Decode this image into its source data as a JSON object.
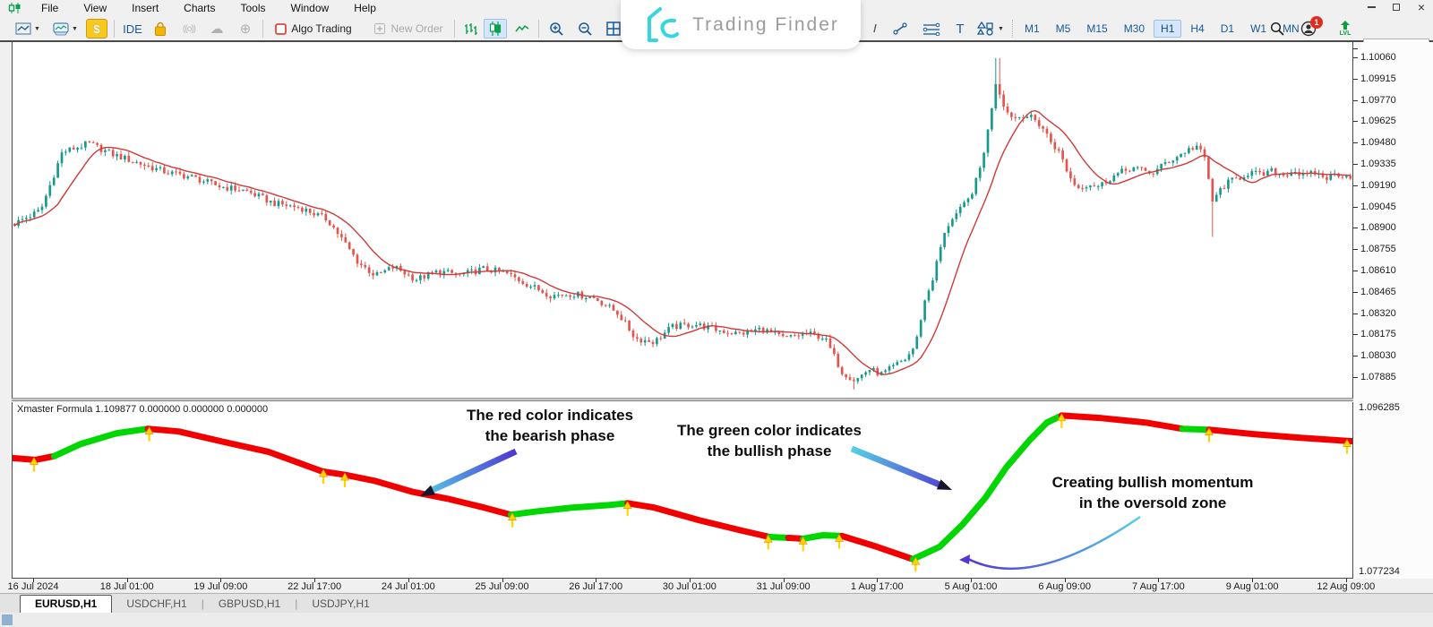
{
  "menubar": {
    "items": [
      "File",
      "View",
      "Insert",
      "Charts",
      "Tools",
      "Window",
      "Help"
    ],
    "window_controls": {
      "close_glyph": "×"
    }
  },
  "logo": {
    "text": "Trading Finder",
    "accent_color": "#35d6e2"
  },
  "toolbar": {
    "ide_label": "IDE",
    "algo_trading_label": "Algo Trading",
    "new_order_label": "New Order",
    "signal_glyph": "((o))",
    "cloud_glyph": "☁",
    "community_glyph": "⊕",
    "dollar_glyph": "$",
    "text_tool_label": "T",
    "lvl_label": "LVL",
    "notification_count": "1",
    "timeframes": [
      "M1",
      "M5",
      "M15",
      "M30",
      "H1",
      "H4",
      "D1",
      "W1",
      "MN"
    ],
    "active_timeframe": "H1"
  },
  "price_scale": {
    "ticks": [
      "1.10060",
      "1.09915",
      "1.09770",
      "1.09625",
      "1.09480",
      "1.09335",
      "1.09190",
      "1.09045",
      "1.08900",
      "1.08755",
      "1.08610",
      "1.08465",
      "1.08320",
      "1.08175",
      "1.08030",
      "1.07885"
    ]
  },
  "indicator": {
    "label": "Xmaster Formula 1.109877 0.000000 0.000000 0.000000",
    "scale_top": "1.096285",
    "scale_bottom": "1.077234",
    "annotations": [
      {
        "line1": "The red color indicates",
        "line2": "the bearish phase"
      },
      {
        "line1": "The green color indicates",
        "line2": "the bullish phase"
      },
      {
        "line1": "Creating bullish momentum",
        "line2": "in the oversold zone"
      }
    ]
  },
  "date_axis": {
    "labels": [
      "16 Jul 2024",
      "18 Jul 01:00",
      "19 Jul 09:00",
      "22 Jul 17:00",
      "24 Jul 01:00",
      "25 Jul 09:00",
      "26 Jul 17:00",
      "30 Jul 01:00",
      "31 Jul 09:00",
      "1 Aug 17:00",
      "5 Aug 01:00",
      "6 Aug 09:00",
      "7 Aug 17:00",
      "9 Aug 01:00",
      "12 Aug 09:00"
    ]
  },
  "tabs": {
    "items": [
      "EURUSD,H1",
      "USDCHF,H1",
      "GBPUSD,H1",
      "USDJPY,H1"
    ],
    "active": "EURUSD,H1"
  },
  "colors": {
    "candle_up": "#15998a",
    "candle_down": "#e5544c",
    "ma_line": "#d03a3a",
    "indicator_red": "#f20000",
    "indicator_green": "#00d600",
    "marker_yellow": "#ffd400",
    "marker_outline": "#e09000",
    "arrow_cyan": "#55cfe6",
    "arrow_purple": "#5136d2",
    "toolbar_blue": "#17599c",
    "toolbar_green": "#0ba04f"
  },
  "chart_data": {
    "type": "candlestick",
    "symbol": "EURUSD",
    "timeframe": "H1",
    "title": "EURUSD,H1 candlestick chart with red moving-average overlay",
    "y_axis": {
      "top": 1.1006,
      "bottom": 1.07885,
      "tick_step": 0.00145,
      "ticks_count": 16
    },
    "x_labels": [
      "16 Jul 2024",
      "18 Jul 01:00",
      "19 Jul 09:00",
      "22 Jul 17:00",
      "24 Jul 01:00",
      "25 Jul 09:00",
      "26 Jul 17:00",
      "30 Jul 01:00",
      "31 Jul 09:00",
      "1 Aug 17:00",
      "5 Aug 01:00",
      "6 Aug 09:00",
      "7 Aug 17:00",
      "9 Aug 01:00",
      "12 Aug 09:00"
    ],
    "grid": false,
    "candles_count": 340,
    "body_noise": 0.00045,
    "wick_noise": 0.00028,
    "ma_period": 12,
    "price_path": [
      [
        0.001,
        1.08927
      ],
      [
        0.021,
        1.09018
      ],
      [
        0.037,
        1.09414
      ],
      [
        0.057,
        1.09475
      ],
      [
        0.074,
        1.09402
      ],
      [
        0.094,
        1.09341
      ],
      [
        0.114,
        1.0928
      ],
      [
        0.134,
        1.09244
      ],
      [
        0.154,
        1.09183
      ],
      [
        0.174,
        1.09152
      ],
      [
        0.195,
        1.09067
      ],
      [
        0.215,
        1.09037
      ],
      [
        0.235,
        1.08957
      ],
      [
        0.245,
        1.08836
      ],
      [
        0.258,
        1.08665
      ],
      [
        0.271,
        1.08574
      ],
      [
        0.285,
        1.08635
      ],
      [
        0.301,
        1.08549
      ],
      [
        0.318,
        1.08604
      ],
      [
        0.335,
        1.0858
      ],
      [
        0.352,
        1.08622
      ],
      [
        0.368,
        1.08592
      ],
      [
        0.385,
        1.08513
      ],
      [
        0.402,
        1.0844
      ],
      [
        0.418,
        1.08452
      ],
      [
        0.435,
        1.08421
      ],
      [
        0.452,
        1.08318
      ],
      [
        0.465,
        1.08147
      ],
      [
        0.479,
        1.08123
      ],
      [
        0.492,
        1.08226
      ],
      [
        0.509,
        1.08245
      ],
      [
        0.525,
        1.08208
      ],
      [
        0.542,
        1.08178
      ],
      [
        0.559,
        1.08214
      ],
      [
        0.576,
        1.08147
      ],
      [
        0.592,
        1.08184
      ],
      [
        0.606,
        1.08153
      ],
      [
        0.619,
        1.07922
      ],
      [
        0.629,
        1.07861
      ],
      [
        0.639,
        1.0794
      ],
      [
        0.649,
        1.07903
      ],
      [
        0.659,
        1.07964
      ],
      [
        0.667,
        1.08013
      ],
      [
        0.674,
        1.08104
      ],
      [
        0.68,
        1.08379
      ],
      [
        0.687,
        1.08561
      ],
      [
        0.694,
        1.08817
      ],
      [
        0.7,
        1.08957
      ],
      [
        0.707,
        1.09018
      ],
      [
        0.714,
        1.09098
      ],
      [
        0.721,
        1.09262
      ],
      [
        0.727,
        1.09506
      ],
      [
        0.734,
        1.09902
      ],
      [
        0.737,
        1.0981
      ],
      [
        0.742,
        1.09688
      ],
      [
        0.749,
        1.09646
      ],
      [
        0.755,
        1.0967
      ],
      [
        0.762,
        1.0964
      ],
      [
        0.769,
        1.09579
      ],
      [
        0.775,
        1.09487
      ],
      [
        0.782,
        1.09402
      ],
      [
        0.789,
        1.09244
      ],
      [
        0.795,
        1.09171
      ],
      [
        0.803,
        1.09201
      ],
      [
        0.811,
        1.09183
      ],
      [
        0.82,
        1.09244
      ],
      [
        0.828,
        1.0928
      ],
      [
        0.836,
        1.09311
      ],
      [
        0.844,
        1.09286
      ],
      [
        0.852,
        1.09274
      ],
      [
        0.86,
        1.09341
      ],
      [
        0.868,
        1.09378
      ],
      [
        0.876,
        1.09426
      ],
      [
        0.884,
        1.09457
      ],
      [
        0.89,
        1.09366
      ],
      [
        0.896,
        1.09061
      ],
      [
        0.901,
        1.09158
      ],
      [
        0.908,
        1.09213
      ],
      [
        0.916,
        1.09244
      ],
      [
        0.924,
        1.0928
      ],
      [
        0.932,
        1.09256
      ],
      [
        0.94,
        1.09286
      ],
      [
        0.948,
        1.09256
      ],
      [
        0.956,
        1.09292
      ],
      [
        0.964,
        1.0925
      ],
      [
        0.972,
        1.09274
      ],
      [
        0.98,
        1.09238
      ],
      [
        0.988,
        1.09268
      ],
      [
        1.0,
        1.0925
      ]
    ],
    "wick_events": [
      {
        "x": 0.735,
        "high": 1.10055
      },
      {
        "x": 0.628,
        "low": 1.078
      },
      {
        "x": 0.896,
        "low": 1.08838
      }
    ],
    "indicator_panel": {
      "name": "Xmaster Formula",
      "type": "line",
      "value_range": [
        1.077234,
        1.096285
      ],
      "segments": [
        {
          "color": "red",
          "pts": [
            [
              0.0,
              1.09022
            ],
            [
              0.017,
              1.09003
            ],
            [
              0.031,
              1.09042
            ]
          ]
        },
        {
          "color": "green",
          "pts": [
            [
              0.031,
              1.09042
            ],
            [
              0.051,
              1.09176
            ],
            [
              0.078,
              1.09292
            ],
            [
              0.101,
              1.0934
            ]
          ]
        },
        {
          "color": "red",
          "pts": [
            [
              0.101,
              1.0934
            ],
            [
              0.124,
              1.09311
            ],
            [
              0.158,
              1.09196
            ],
            [
              0.191,
              1.0909
            ],
            [
              0.231,
              1.08878
            ],
            [
              0.248,
              1.0884
            ],
            [
              0.271,
              1.08772
            ],
            [
              0.298,
              1.08657
            ],
            [
              0.325,
              1.0858
            ],
            [
              0.352,
              1.08484
            ],
            [
              0.372,
              1.08407
            ]
          ]
        },
        {
          "color": "green",
          "pts": [
            [
              0.372,
              1.08407
            ],
            [
              0.392,
              1.08445
            ],
            [
              0.418,
              1.08484
            ],
            [
              0.445,
              1.08512
            ],
            [
              0.459,
              1.08532
            ]
          ]
        },
        {
          "color": "red",
          "pts": [
            [
              0.459,
              1.08532
            ],
            [
              0.479,
              1.08484
            ],
            [
              0.512,
              1.08349
            ],
            [
              0.545,
              1.08233
            ],
            [
              0.565,
              1.08166
            ]
          ]
        },
        {
          "color": "green",
          "pts": [
            [
              0.565,
              1.08166
            ],
            [
              0.579,
              1.08156
            ]
          ]
        },
        {
          "color": "red",
          "pts": [
            [
              0.579,
              1.08156
            ],
            [
              0.59,
              1.08147
            ]
          ]
        },
        {
          "color": "green",
          "pts": [
            [
              0.59,
              1.08147
            ],
            [
              0.605,
              1.08185
            ],
            [
              0.619,
              1.08176
            ]
          ]
        },
        {
          "color": "red",
          "pts": [
            [
              0.619,
              1.08176
            ],
            [
              0.645,
              1.0806
            ],
            [
              0.672,
              1.07925
            ]
          ]
        },
        {
          "color": "green",
          "pts": [
            [
              0.672,
              1.07925
            ],
            [
              0.692,
              1.0806
            ],
            [
              0.709,
              1.08301
            ],
            [
              0.726,
              1.08589
            ],
            [
              0.742,
              1.08926
            ],
            [
              0.759,
              1.09215
            ],
            [
              0.772,
              1.09407
            ],
            [
              0.783,
              1.09484
            ]
          ]
        },
        {
          "color": "red",
          "pts": [
            [
              0.783,
              1.09484
            ],
            [
              0.813,
              1.09455
            ],
            [
              0.846,
              1.09407
            ],
            [
              0.873,
              1.0934
            ]
          ]
        },
        {
          "color": "green",
          "pts": [
            [
              0.873,
              1.0934
            ],
            [
              0.893,
              1.0933
            ]
          ]
        },
        {
          "color": "red",
          "pts": [
            [
              0.893,
              1.0933
            ],
            [
              0.926,
              1.09282
            ],
            [
              0.96,
              1.09244
            ],
            [
              1.0,
              1.09205
            ]
          ]
        }
      ],
      "markers": [
        [
          0.016,
          1.0901
        ],
        [
          0.102,
          1.0934
        ],
        [
          0.232,
          1.08878
        ],
        [
          0.248,
          1.0884
        ],
        [
          0.373,
          1.08407
        ],
        [
          0.459,
          1.08532
        ],
        [
          0.564,
          1.08166
        ],
        [
          0.59,
          1.08147
        ],
        [
          0.617,
          1.08176
        ],
        [
          0.674,
          1.07925
        ],
        [
          0.783,
          1.09484
        ],
        [
          0.893,
          1.0933
        ],
        [
          0.996,
          1.09205
        ]
      ]
    }
  }
}
